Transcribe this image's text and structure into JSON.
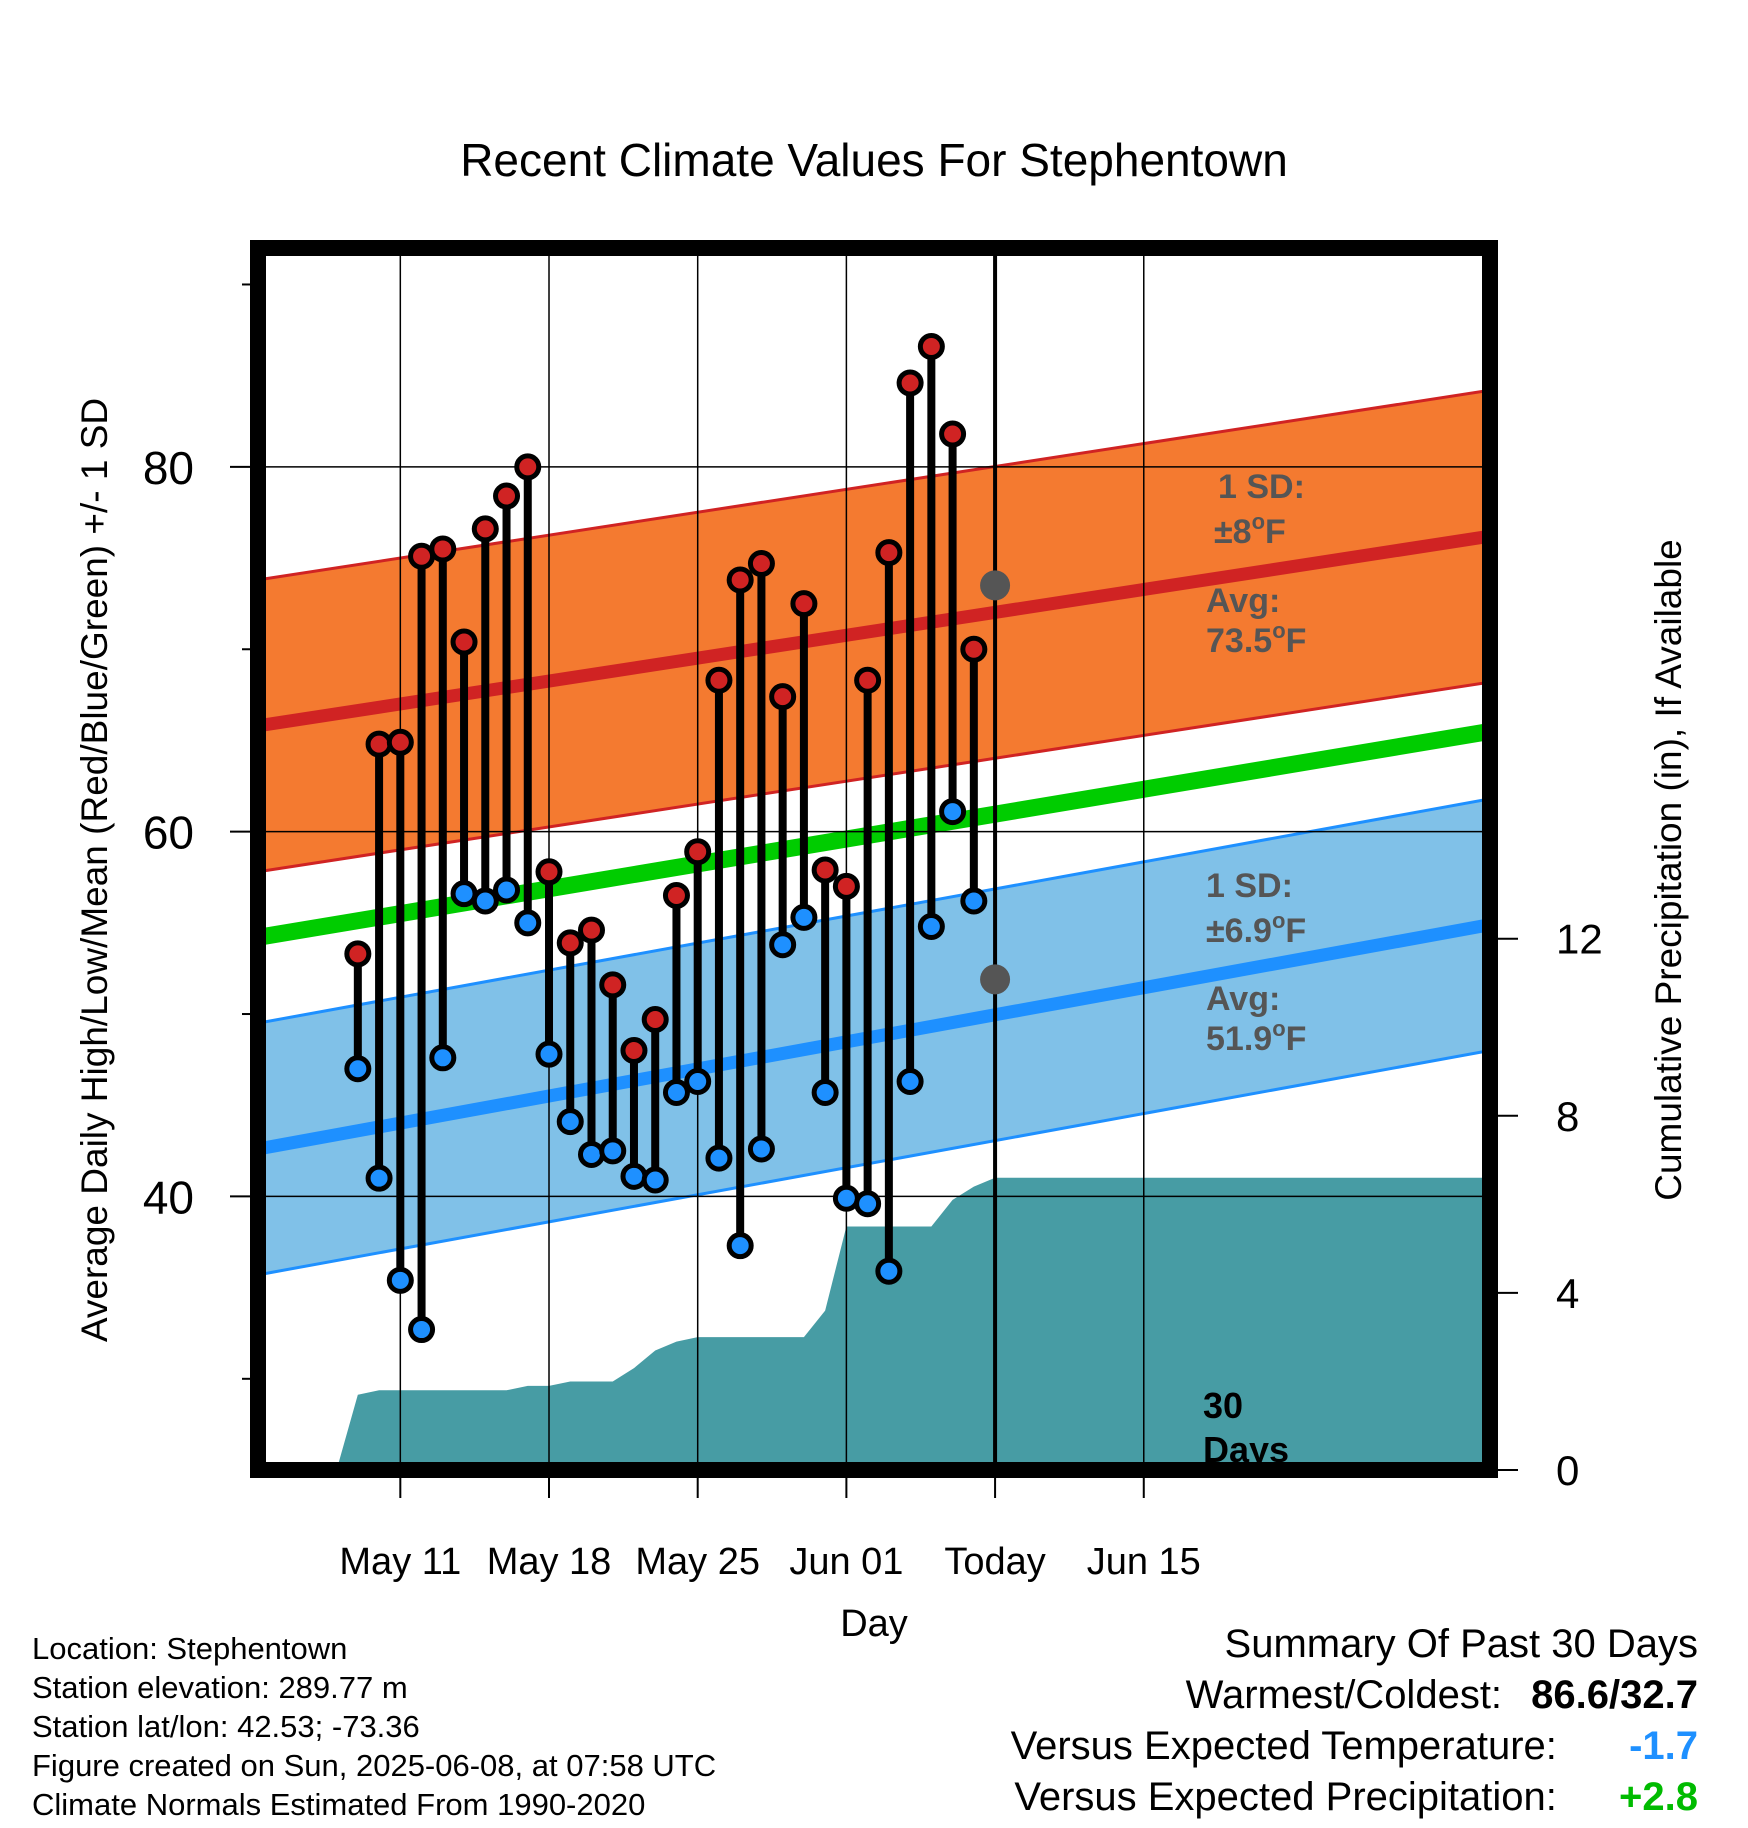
{
  "chart_data": {
    "type": "line",
    "title": "Recent Climate Values For Stephentown",
    "xlabel": "Day",
    "ylabel_left": "Average Daily High/Low/Mean (Red/Blue/Green) +/- 1 SD",
    "ylabel_right": "Cumulative Precipitation (in), If Available",
    "ylim_left": [
      25,
      92
    ],
    "ylim_right": [
      0,
      27.6
    ],
    "xlim": [
      -3.7,
      54.3
    ],
    "left_ticks": [
      40,
      60,
      80
    ],
    "right_ticks": [
      0,
      4,
      8,
      12
    ],
    "x_ticks": [
      {
        "day": 3,
        "label": "May 11"
      },
      {
        "day": 10,
        "label": "May 18"
      },
      {
        "day": 17,
        "label": "May 25"
      },
      {
        "day": 24,
        "label": "Jun 01"
      },
      {
        "day": 31,
        "label": "Today"
      },
      {
        "day": 38,
        "label": "Jun 15"
      }
    ],
    "today_day": 31,
    "days_label": [
      "30",
      "Days"
    ],
    "normal_high": {
      "start": 65.8,
      "end": 76.2,
      "sd": 8,
      "sd_label": [
        "1 SD:",
        "±8",
        "o",
        "F"
      ],
      "avg_label": [
        "Avg:",
        "73.5",
        "o",
        "F"
      ],
      "avg": 73.5
    },
    "normal_low": {
      "start": 42.6,
      "end": 54.9,
      "sd": 6.9,
      "sd_label": [
        "1 SD:",
        "±6.9",
        "o",
        "F"
      ],
      "avg_label": [
        "Avg:",
        "51.9",
        "o",
        "F"
      ],
      "avg": 51.9
    },
    "normal_mean": {
      "start": 54.2,
      "end": 65.5
    },
    "days": [
      1,
      2,
      3,
      4,
      5,
      6,
      7,
      8,
      9,
      10,
      11,
      12,
      13,
      14,
      15,
      16,
      17,
      18,
      19,
      20,
      21,
      22,
      23,
      24,
      25,
      26,
      27,
      28,
      29,
      30
    ],
    "highs": [
      53.3,
      64.8,
      64.9,
      75.1,
      75.5,
      70.4,
      76.6,
      78.4,
      80.0,
      57.8,
      53.9,
      54.6,
      51.6,
      48.0,
      49.7,
      56.5,
      58.9,
      68.3,
      73.8,
      74.7,
      67.4,
      72.5,
      57.9,
      57.0,
      68.3,
      75.3,
      84.6,
      86.6,
      81.8,
      70.0
    ],
    "lows": [
      47.0,
      41.0,
      35.4,
      32.7,
      47.6,
      56.6,
      56.2,
      56.8,
      55.0,
      47.8,
      44.1,
      42.3,
      42.5,
      41.1,
      40.9,
      45.7,
      46.3,
      42.1,
      37.3,
      42.6,
      53.8,
      55.3,
      45.7,
      39.9,
      39.6,
      35.9,
      46.3,
      54.8,
      61.1,
      56.2
    ],
    "precip_cumulative": {
      "days": [
        0,
        1,
        2,
        5,
        6,
        8,
        9,
        10,
        11,
        12,
        13,
        14,
        15,
        16,
        17,
        18,
        19,
        20,
        21,
        22,
        23,
        24,
        25,
        26,
        27,
        28,
        29,
        30,
        31,
        32,
        33,
        34,
        35,
        36,
        37,
        38,
        39,
        40
      ],
      "values": [
        0,
        1.7,
        1.8,
        1.8,
        1.8,
        1.8,
        1.9,
        1.9,
        2.0,
        2.0,
        2.0,
        2.3,
        2.7,
        2.9,
        3.0,
        3.0,
        3.0,
        3.0,
        3.0,
        3.0,
        3.6,
        5.5,
        5.5,
        5.5,
        5.5,
        5.5,
        6.1,
        6.4,
        6.6,
        6.6,
        6.6,
        6.6,
        6.6,
        6.6,
        6.6,
        6.6,
        6.6,
        6.6
      ]
    },
    "colors": {
      "high_band": "#f47a30",
      "high_line": "#d02323",
      "low_band": "#80c1e8",
      "low_line": "#1e90ff",
      "mean_line": "#00cc00",
      "precip": "#479ca4",
      "high_dot": "#d02323",
      "low_dot": "#1e90ff",
      "avg_dot": "#555555",
      "label_text": "#555555"
    }
  },
  "info": {
    "location": "Location: Stephentown",
    "elevation": "Station elevation: 289.77 m",
    "latlon": "Station lat/lon: 42.53; -73.36",
    "created": "Figure created on Sun, 2025-06-08, at 07:58 UTC",
    "normals": "Climate Normals Estimated From 1990-2020"
  },
  "summary": {
    "title": "Summary Of Past 30 Days",
    "warmest_coldest_label": "Warmest/Coldest:",
    "warmest_coldest_value": "86.6/32.7",
    "temp_label": "Versus Expected Temperature:",
    "temp_value": "-1.7",
    "temp_color": "#1e90ff",
    "precip_label": "Versus Expected Precipitation:",
    "precip_value": "+2.8",
    "precip_color": "#00bb00"
  }
}
